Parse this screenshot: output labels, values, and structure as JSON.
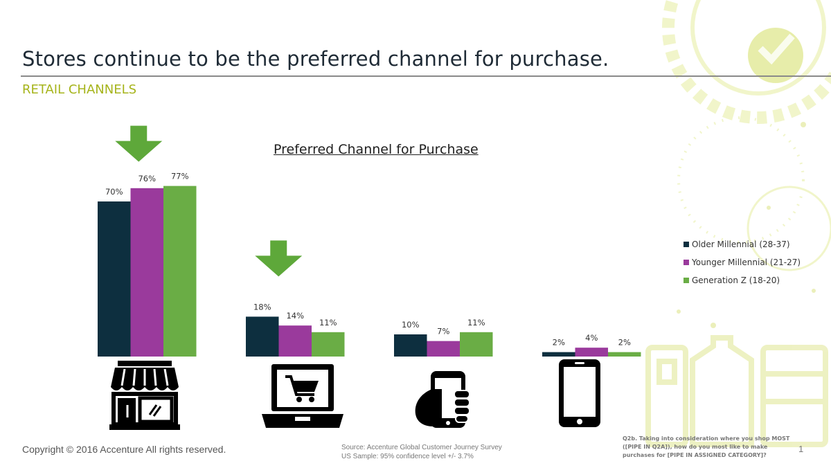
{
  "header": {
    "title": "Stores continue to be the preferred channel for purchase.",
    "subtitle": "RETAIL CHANNELS"
  },
  "colors": {
    "older_millennial": "#0d2f3f",
    "younger_millennial": "#9a3a9c",
    "generation_z": "#6aad45",
    "accent_green": "#5ea83a",
    "subtitle": "#a6b41b"
  },
  "chart_data": {
    "type": "bar",
    "title": "Preferred Channel for Purchase",
    "categories": [
      "Store",
      "Computer",
      "Smartphone",
      "Tablet"
    ],
    "category_icons": [
      "store-icon",
      "laptop-cart-icon",
      "hand-smartphone-icon",
      "tablet-icon"
    ],
    "series": [
      {
        "name": "Older Millennial (28-37)",
        "values": [
          70,
          18,
          10,
          2
        ]
      },
      {
        "name": "Younger Millennial (21-27)",
        "values": [
          76,
          14,
          7,
          4
        ]
      },
      {
        "name": "Generation Z (18-20)",
        "values": [
          77,
          11,
          11,
          2
        ]
      }
    ],
    "data_labels": [
      [
        "70%",
        "18%",
        "10%",
        "2%"
      ],
      [
        "76%",
        "14%",
        "7%",
        "4%"
      ],
      [
        "77%",
        "11%",
        "11%",
        "2%"
      ]
    ],
    "highlighted_categories": [
      "Store",
      "Computer"
    ],
    "ylim": [
      0,
      100
    ],
    "xlabel": "",
    "ylabel": "",
    "legend_position": "right"
  },
  "footer": {
    "copyright": "Copyright © 2016 Accenture  All rights reserved.",
    "source_line1": "Source: Accenture Global Customer Journey Survey",
    "source_line2": "US Sample:  95% confidence level +/- 3.7%",
    "question": "Q2b.  Taking into consideration where you shop MOST ([PIPE IN Q2A]), how do you most like to make purchases for [PIPE IN ASSIGNED CATEGORY]?",
    "page_number": "1"
  }
}
